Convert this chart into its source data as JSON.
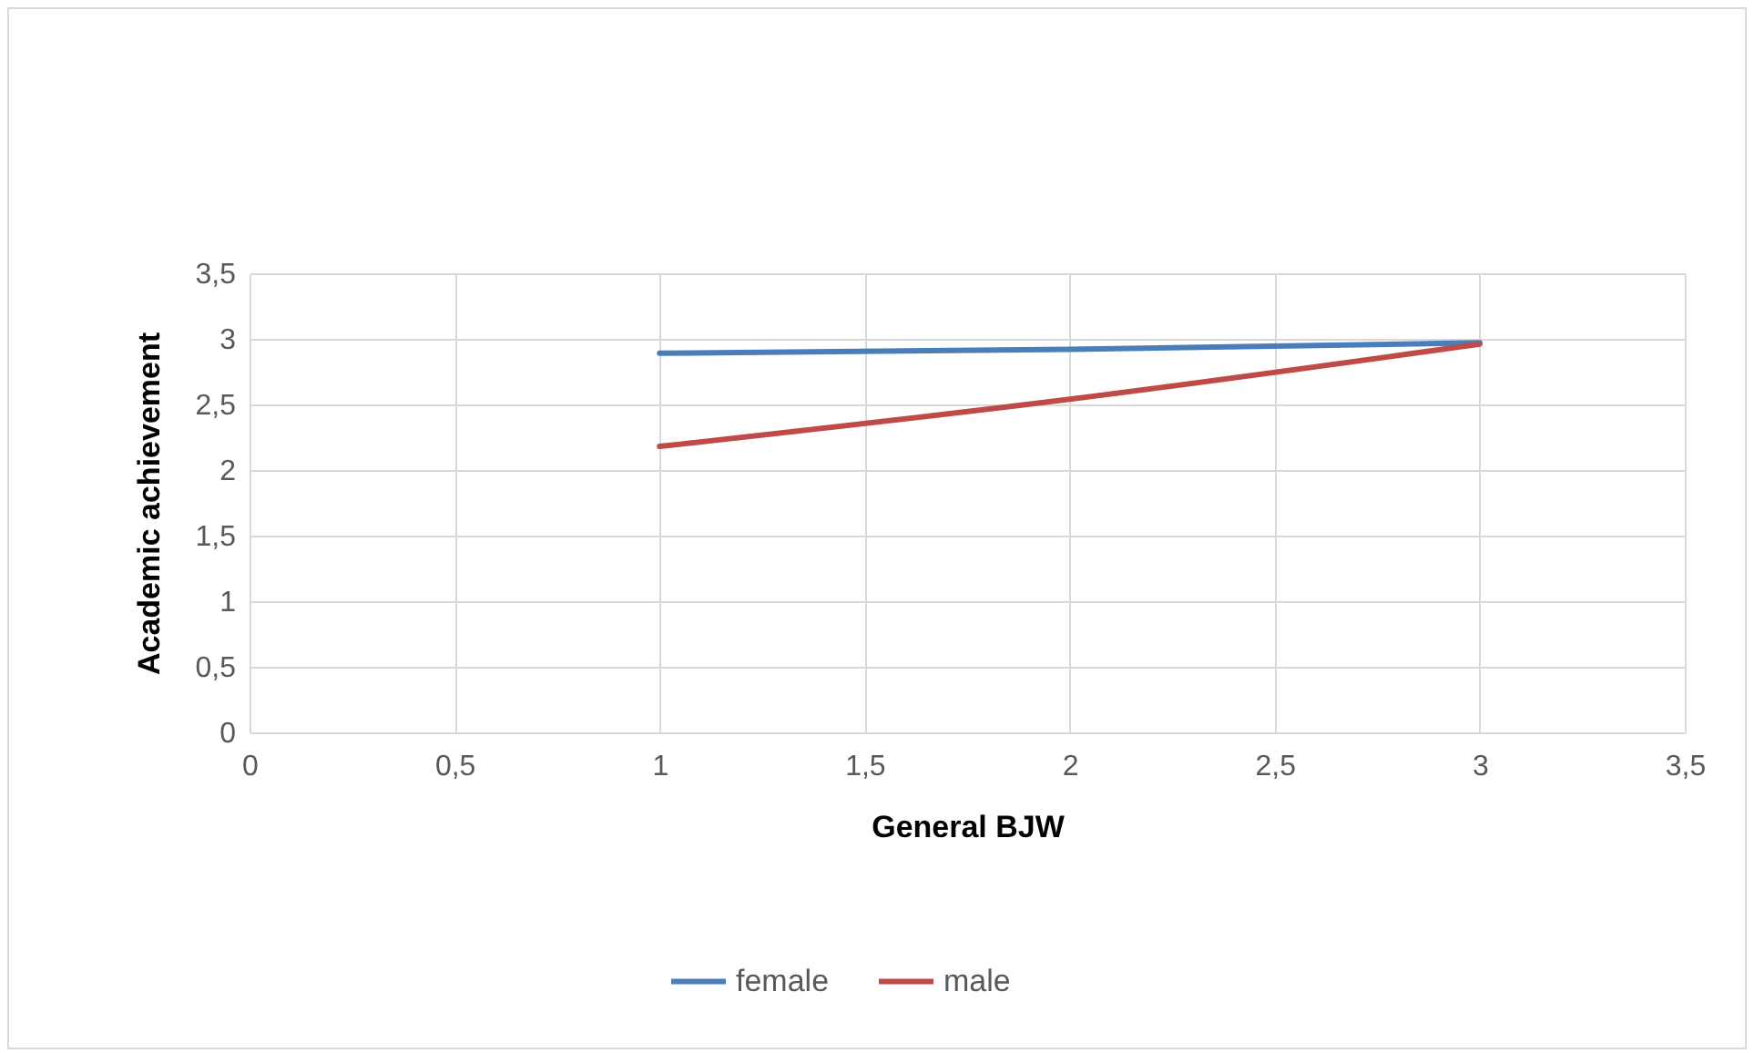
{
  "chart_data": {
    "type": "line",
    "xlabel": "General BJW",
    "ylabel": "Academic achievement",
    "x": [
      1,
      2,
      3
    ],
    "series": [
      {
        "name": "female",
        "color": "#4a7ebb",
        "values": [
          2.89,
          2.92,
          2.97
        ]
      },
      {
        "name": "male",
        "color": "#be4b48",
        "values": [
          2.18,
          2.54,
          2.96
        ]
      }
    ],
    "xlim": [
      0,
      3.5
    ],
    "ylim": [
      0,
      3.5
    ],
    "xticks": [
      0,
      {
        "value": 0.5,
        "label": "0,5"
      },
      1,
      {
        "value": 1.5,
        "label": "1,5"
      },
      2,
      {
        "value": 2.5,
        "label": "2,5"
      },
      3,
      {
        "value": 3.5,
        "label": "3,5"
      }
    ],
    "yticks": [
      0,
      {
        "value": 0.5,
        "label": "0,5"
      },
      1,
      {
        "value": 1.5,
        "label": "1,5"
      },
      2,
      {
        "value": 2.5,
        "label": "2,5"
      },
      3,
      {
        "value": 3.5,
        "label": "3,5"
      }
    ],
    "grid": true,
    "legend": "bottom",
    "marker": "none",
    "line_style": "solid"
  }
}
